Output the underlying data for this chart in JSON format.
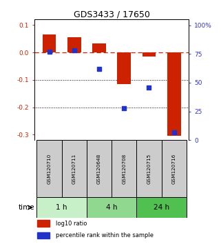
{
  "title": "GDS3433 / 17650",
  "samples": [
    "GSM120710",
    "GSM120711",
    "GSM120648",
    "GSM120708",
    "GSM120715",
    "GSM120716"
  ],
  "groups": [
    {
      "label": "1 h",
      "indices": [
        0,
        1
      ],
      "color": "#c8f0c8"
    },
    {
      "label": "4 h",
      "indices": [
        2,
        3
      ],
      "color": "#90d890"
    },
    {
      "label": "24 h",
      "indices": [
        4,
        5
      ],
      "color": "#50c050"
    }
  ],
  "log10_ratio": [
    0.065,
    0.055,
    0.033,
    -0.115,
    -0.015,
    -0.305
  ],
  "percentile_rank": [
    77,
    78,
    62,
    28,
    46,
    7
  ],
  "ylim_left": [
    -0.32,
    0.12
  ],
  "ylim_right": [
    0,
    105
  ],
  "yticks_left": [
    0.1,
    0.0,
    -0.1,
    -0.2,
    -0.3
  ],
  "yticks_right": [
    100,
    75,
    50,
    25,
    0
  ],
  "hline_y": 0.0,
  "dotted_lines": [
    -0.1,
    -0.2
  ],
  "bar_color": "#cc2200",
  "point_color": "#2233cc",
  "bar_width": 0.55,
  "point_size": 18,
  "legend_bar_label": "log10 ratio",
  "legend_point_label": "percentile rank within the sample",
  "time_label": "time",
  "background_color": "#ffffff",
  "plot_bg": "#ffffff",
  "sample_box_color": "#cccccc",
  "right_axis_color": "#3333cc",
  "left_axis_color": "#cc2200"
}
